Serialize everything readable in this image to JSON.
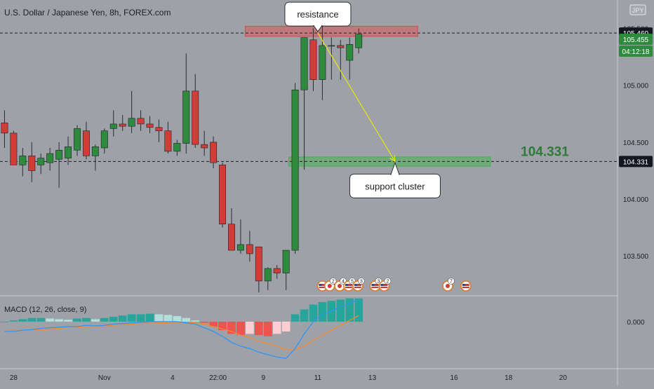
{
  "chart_data": {
    "type": "candlestick",
    "title": "U.S. Dollar / Japanese Yen, 8h, FOREX.com",
    "currency_badge": "JPY",
    "price_axis": {
      "ylim": [
        103.15,
        105.75
      ],
      "ticks": [
        "105.500",
        "105.000",
        "104.500",
        "104.000",
        "103.500"
      ],
      "tick_values": [
        105.5,
        105.0,
        104.5,
        104.0,
        103.5
      ],
      "labels": [
        {
          "text": "105.460",
          "value": 105.46,
          "style": "black"
        },
        {
          "text": "105.455",
          "value": 105.405,
          "style": "green"
        },
        {
          "text": "04:12:18",
          "value": 105.3,
          "style": "green"
        },
        {
          "text": "104.331",
          "value": 104.331,
          "style": "black"
        }
      ]
    },
    "x_axis": {
      "tick_labels": [
        {
          "text": "28",
          "bar": 1
        },
        {
          "text": "Nov",
          "bar": 11
        },
        {
          "text": "4",
          "bar": 18.5
        },
        {
          "text": "22:00",
          "bar": 23.5
        },
        {
          "text": "9",
          "bar": 28.5
        },
        {
          "text": "11",
          "bar": 34.5
        },
        {
          "text": "13",
          "bar": 40.5
        },
        {
          "text": "16",
          "bar": 49.5
        },
        {
          "text": "18",
          "bar": 55.5
        },
        {
          "text": "20",
          "bar": 61.5
        }
      ],
      "bars_in_view": 68
    },
    "candles": [
      {
        "o": 104.67,
        "h": 104.78,
        "l": 104.45,
        "c": 104.58
      },
      {
        "o": 104.58,
        "h": 104.6,
        "l": 104.32,
        "c": 104.3
      },
      {
        "o": 104.3,
        "h": 104.45,
        "l": 104.2,
        "c": 104.38
      },
      {
        "o": 104.38,
        "h": 104.5,
        "l": 104.15,
        "c": 104.25
      },
      {
        "o": 104.3,
        "h": 104.4,
        "l": 104.22,
        "c": 104.36
      },
      {
        "o": 104.32,
        "h": 104.45,
        "l": 104.25,
        "c": 104.4
      },
      {
        "o": 104.35,
        "h": 104.5,
        "l": 104.1,
        "c": 104.43
      },
      {
        "o": 104.36,
        "h": 104.55,
        "l": 104.3,
        "c": 104.46
      },
      {
        "o": 104.43,
        "h": 104.65,
        "l": 104.38,
        "c": 104.62
      },
      {
        "o": 104.6,
        "h": 104.68,
        "l": 104.35,
        "c": 104.38
      },
      {
        "o": 104.38,
        "h": 104.48,
        "l": 104.25,
        "c": 104.46
      },
      {
        "o": 104.45,
        "h": 104.62,
        "l": 104.4,
        "c": 104.6
      },
      {
        "o": 104.62,
        "h": 104.78,
        "l": 104.55,
        "c": 104.66
      },
      {
        "o": 104.66,
        "h": 104.74,
        "l": 104.6,
        "c": 104.64
      },
      {
        "o": 104.64,
        "h": 104.95,
        "l": 104.58,
        "c": 104.71
      },
      {
        "o": 104.71,
        "h": 104.78,
        "l": 104.6,
        "c": 104.66
      },
      {
        "o": 104.66,
        "h": 104.73,
        "l": 104.58,
        "c": 104.63
      },
      {
        "o": 104.63,
        "h": 104.7,
        "l": 104.5,
        "c": 104.6
      },
      {
        "o": 104.6,
        "h": 104.68,
        "l": 104.4,
        "c": 104.42
      },
      {
        "o": 104.42,
        "h": 104.52,
        "l": 104.38,
        "c": 104.49
      },
      {
        "o": 104.49,
        "h": 105.28,
        "l": 104.4,
        "c": 104.95
      },
      {
        "o": 104.95,
        "h": 105.1,
        "l": 104.45,
        "c": 104.48
      },
      {
        "o": 104.48,
        "h": 104.6,
        "l": 104.38,
        "c": 104.45
      },
      {
        "o": 104.5,
        "h": 104.55,
        "l": 104.27,
        "c": 104.32
      },
      {
        "o": 104.3,
        "h": 104.32,
        "l": 103.75,
        "c": 103.78
      },
      {
        "o": 103.78,
        "h": 103.92,
        "l": 103.55,
        "c": 103.55
      },
      {
        "o": 103.55,
        "h": 103.82,
        "l": 103.52,
        "c": 103.6
      },
      {
        "o": 103.6,
        "h": 103.72,
        "l": 103.45,
        "c": 103.52
      },
      {
        "o": 103.58,
        "h": 103.58,
        "l": 103.18,
        "c": 103.28
      },
      {
        "o": 103.28,
        "h": 103.4,
        "l": 103.2,
        "c": 103.39
      },
      {
        "o": 103.39,
        "h": 103.42,
        "l": 103.3,
        "c": 103.35
      },
      {
        "o": 103.35,
        "h": 103.55,
        "l": 103.2,
        "c": 103.55
      },
      {
        "o": 103.55,
        "h": 105.02,
        "l": 103.52,
        "c": 104.96
      },
      {
        "o": 104.96,
        "h": 105.42,
        "l": 104.26,
        "c": 105.42
      },
      {
        "o": 105.4,
        "h": 105.5,
        "l": 104.95,
        "c": 105.05
      },
      {
        "o": 105.05,
        "h": 105.62,
        "l": 104.87,
        "c": 105.35
      },
      {
        "o": 105.35,
        "h": 105.42,
        "l": 105.05,
        "c": 105.35
      },
      {
        "o": 105.35,
        "h": 105.4,
        "l": 105.05,
        "c": 105.33
      },
      {
        "o": 105.22,
        "h": 105.42,
        "l": 105.05,
        "c": 105.36
      },
      {
        "o": 105.33,
        "h": 105.5,
        "l": 105.28,
        "c": 105.45
      }
    ],
    "candle_first_bar": 0,
    "zones": [
      {
        "name": "resistance-zone",
        "bar_start": 26.5,
        "bar_end": 45.5,
        "y_from": 105.43,
        "y_to": 105.52,
        "color": "#e04848"
      },
      {
        "name": "support-zone",
        "bar_start": 31.3,
        "bar_end": 53.5,
        "y_from": 104.29,
        "y_to": 104.37,
        "color": "#38b545"
      }
    ],
    "hlines": [
      105.46,
      104.331
    ],
    "arrow": {
      "from_bar": 34.5,
      "from_y": 105.46,
      "to_bar": 43.0,
      "to_y": 104.331,
      "color": "#e6e80c"
    },
    "annotations": [
      {
        "text": "resistance",
        "type": "callout",
        "bar": 34.5,
        "value": 105.46,
        "pointer": "down"
      },
      {
        "text": "support cluster",
        "type": "callout",
        "bar": 43.0,
        "value": 104.331,
        "pointer": "up"
      },
      {
        "text": "104.331",
        "type": "label",
        "bar": 59.5,
        "value": 104.331
      }
    ],
    "events": [
      {
        "bar": 35.0,
        "kind": "us"
      },
      {
        "bar": 35.8,
        "kind": "jp",
        "count": "2"
      },
      {
        "bar": 36.9,
        "kind": "jp",
        "count": "4"
      },
      {
        "bar": 37.9,
        "kind": "us",
        "count": "5"
      },
      {
        "bar": 38.9,
        "kind": "us",
        "count": "3"
      },
      {
        "bar": 40.8,
        "kind": "us",
        "count": "3"
      },
      {
        "bar": 41.8,
        "kind": "us",
        "count": "2"
      },
      {
        "bar": 48.8,
        "kind": "jp",
        "count": "7"
      },
      {
        "bar": 50.8,
        "kind": "us"
      }
    ],
    "macd": {
      "label": "MACD (12, 26, close, 9)",
      "zero_label": "0.000",
      "ylim": [
        -0.35,
        0.2
      ],
      "histogram": [
        0.0,
        0.01,
        0.02,
        0.03,
        0.03,
        0.025,
        0.02,
        0.015,
        0.025,
        0.03,
        0.02,
        0.03,
        0.04,
        0.05,
        0.06,
        0.06,
        0.065,
        0.06,
        0.055,
        0.045,
        0.03,
        0.01,
        -0.01,
        -0.04,
        -0.07,
        -0.1,
        -0.11,
        -0.1,
        -0.11,
        -0.12,
        -0.1,
        -0.08,
        0.06,
        0.1,
        0.14,
        0.16,
        0.17,
        0.18,
        0.19,
        0.19
      ],
      "macd_line": [
        -0.08,
        -0.08,
        -0.07,
        -0.065,
        -0.055,
        -0.05,
        -0.045,
        -0.04,
        -0.04,
        -0.03,
        -0.035,
        -0.03,
        -0.02,
        -0.015,
        -0.01,
        -0.005,
        0.0,
        0.0,
        0.0,
        0.0,
        -0.01,
        -0.02,
        -0.05,
        -0.08,
        -0.12,
        -0.17,
        -0.2,
        -0.22,
        -0.25,
        -0.27,
        -0.29,
        -0.3,
        -0.22,
        -0.1,
        0.0,
        0.06,
        0.09,
        0.12,
        0.15,
        0.18
      ],
      "signal_line": [
        -0.07,
        -0.072,
        -0.07,
        -0.068,
        -0.065,
        -0.06,
        -0.055,
        -0.05,
        -0.045,
        -0.04,
        -0.04,
        -0.035,
        -0.03,
        -0.025,
        -0.02,
        -0.015,
        -0.012,
        -0.01,
        -0.008,
        -0.006,
        -0.008,
        -0.01,
        -0.02,
        -0.04,
        -0.06,
        -0.08,
        -0.11,
        -0.13,
        -0.16,
        -0.18,
        -0.2,
        -0.23,
        -0.23,
        -0.2,
        -0.15,
        -0.11,
        -0.07,
        -0.03,
        0.01,
        0.05
      ],
      "colors": {
        "macd": "#2f95f2",
        "signal": "#f2892f",
        "hist_pos_strong": "#26a69a",
        "hist_pos_weak": "#b2dfdb",
        "hist_neg_strong": "#ef5350",
        "hist_neg_weak": "#ffcdd2"
      }
    },
    "colors": {
      "up": "#2e8a3c",
      "down": "#d33b36",
      "background": "#9ea1a8",
      "wick": "#2b2d33"
    }
  }
}
